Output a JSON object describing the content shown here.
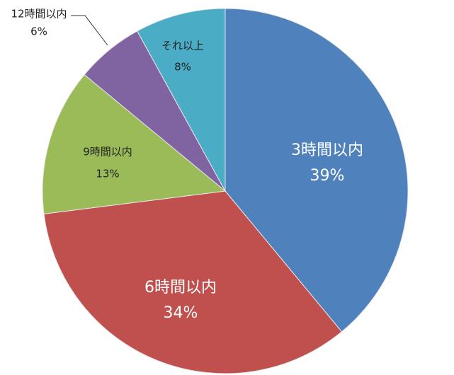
{
  "chart_data": {
    "type": "pie",
    "categories": [
      "3時間以内",
      "6時間以内",
      "9時間以内",
      "12時間以内",
      "それ以上"
    ],
    "values": [
      39,
      34,
      13,
      6,
      8
    ],
    "value_labels": [
      "39%",
      "34%",
      "13%",
      "6%",
      "8%"
    ],
    "colors": [
      "#4f81bd",
      "#c0504d",
      "#9bbb59",
      "#8064a2",
      "#4bacc6"
    ]
  }
}
